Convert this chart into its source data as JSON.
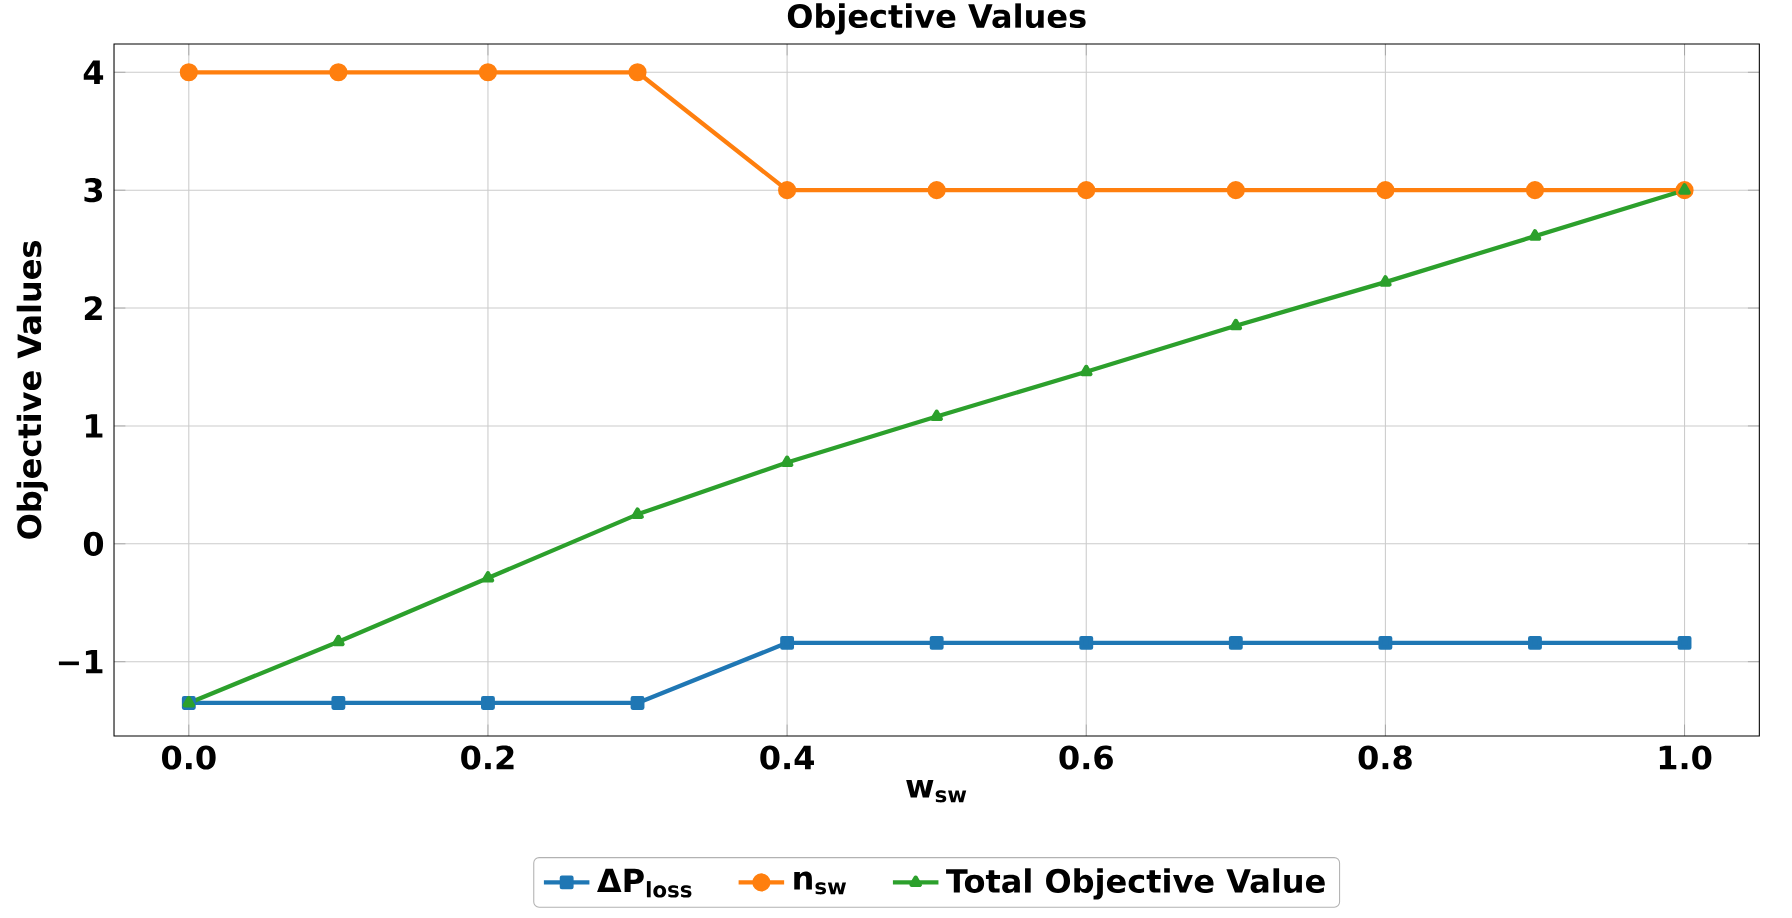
{
  "chart_data": {
    "type": "line",
    "title": "Objective Values",
    "xlabel": "w$_{sw}$",
    "ylabel": "Objective Values",
    "x": [
      0.0,
      0.1,
      0.2,
      0.3,
      0.4,
      0.5,
      0.6,
      0.7,
      0.8,
      0.9,
      1.0
    ],
    "series": [
      {
        "name": "ΔP$_{loss}$",
        "color": "#1f77b4",
        "marker": "square",
        "values": [
          -1.35,
          -1.35,
          -1.35,
          -1.35,
          -0.84,
          -0.84,
          -0.84,
          -0.84,
          -0.84,
          -0.84,
          -0.84
        ]
      },
      {
        "name": "n$_{sw}$",
        "color": "#ff7f0e",
        "marker": "circle",
        "values": [
          4,
          4,
          4,
          4,
          3,
          3,
          3,
          3,
          3,
          3,
          3
        ]
      },
      {
        "name": "Total Objective Value",
        "color": "#2ca02c",
        "marker": "triangle",
        "values": [
          -1.35,
          -0.83,
          -0.29,
          0.25,
          0.69,
          1.08,
          1.46,
          1.85,
          2.22,
          2.61,
          3.0
        ]
      }
    ],
    "xlim": [
      -0.05,
      1.05
    ],
    "ylim": [
      -1.63,
      4.24
    ],
    "xticks": [
      {
        "value": 0,
        "label": "0.0"
      },
      {
        "value": 0.2,
        "label": "0.2"
      },
      {
        "value": 0.4,
        "label": "0.4"
      },
      {
        "value": 0.6,
        "label": "0.6"
      },
      {
        "value": 0.8,
        "label": "0.8"
      },
      {
        "value": 1.0,
        "label": "1.0"
      }
    ],
    "yticks": [
      {
        "value": -1,
        "label": "−1"
      },
      0,
      1,
      2,
      3,
      4
    ],
    "grid": true,
    "legend": "bottom",
    "line_style": "solid"
  }
}
